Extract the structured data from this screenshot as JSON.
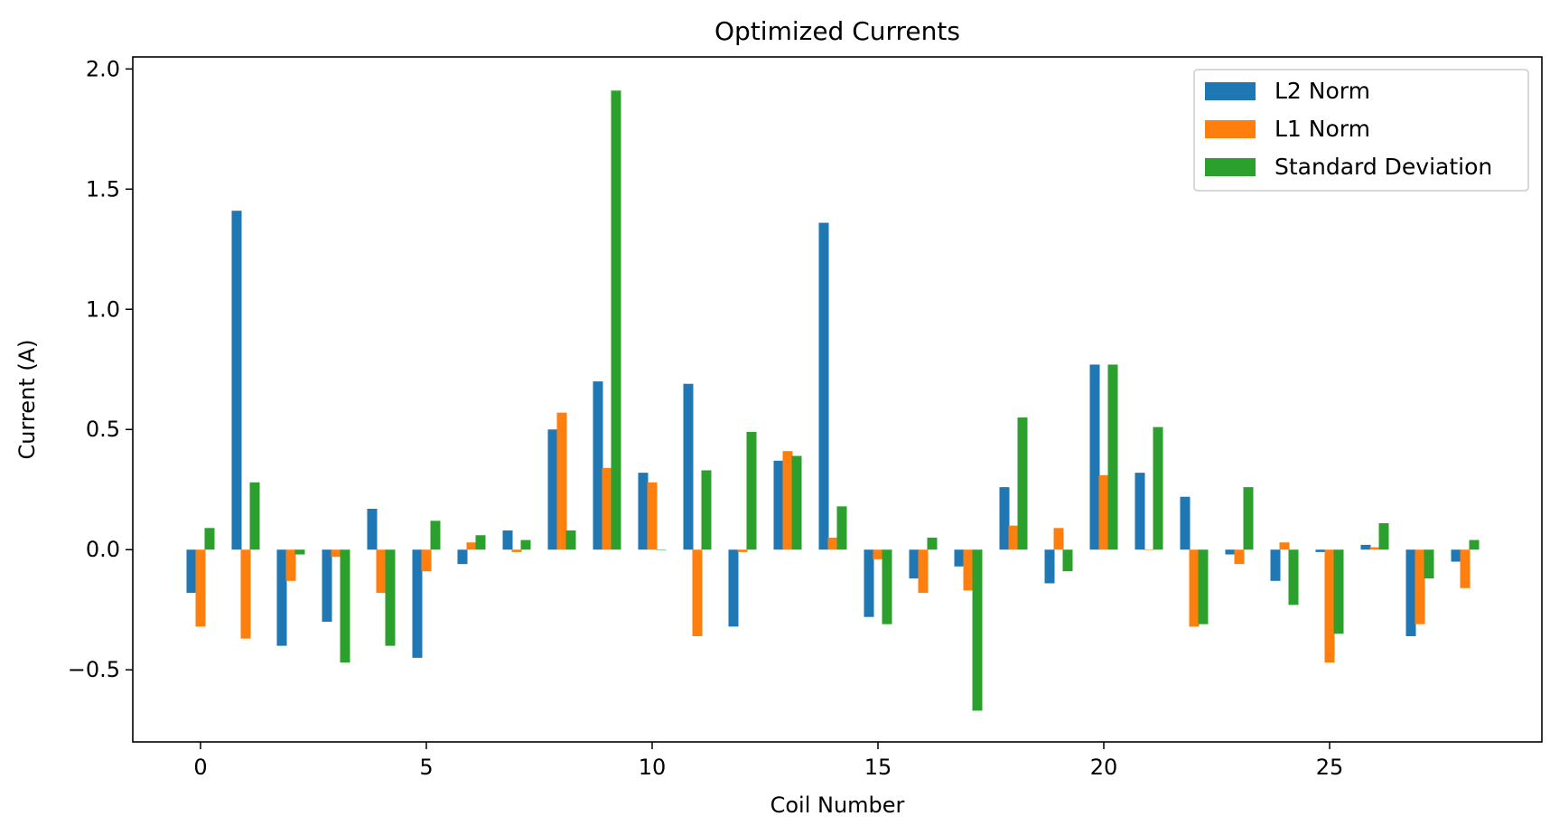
{
  "chart_data": {
    "type": "bar",
    "title": "Optimized Currents",
    "xlabel": "Coil Number",
    "ylabel": "Current (A)",
    "xlim": [
      -1.5,
      29.7
    ],
    "ylim": [
      -0.8,
      2.05
    ],
    "xticks": [
      0,
      5,
      10,
      15,
      20,
      25
    ],
    "yticks": [
      -0.5,
      0.0,
      0.5,
      1.0,
      1.5,
      2.0
    ],
    "ytick_labels": [
      "−0.5",
      "0.0",
      "0.5",
      "1.0",
      "1.5",
      "2.0"
    ],
    "xtick_labels": [
      "0",
      "5",
      "10",
      "15",
      "20",
      "25"
    ],
    "grid": false,
    "legend_position": "top-right",
    "categories": [
      0,
      1,
      2,
      3,
      4,
      5,
      6,
      7,
      8,
      9,
      10,
      11,
      12,
      13,
      14,
      15,
      16,
      17,
      18,
      19,
      20,
      21,
      22,
      23,
      24,
      25,
      26,
      27,
      28
    ],
    "series": [
      {
        "name": "L2 Norm",
        "color": "#1f77b4",
        "values": [
          -0.18,
          1.41,
          -0.4,
          -0.3,
          0.17,
          -0.45,
          -0.06,
          0.08,
          0.5,
          0.7,
          0.32,
          0.69,
          -0.32,
          0.37,
          1.36,
          -0.28,
          -0.12,
          -0.07,
          0.26,
          -0.14,
          0.77,
          0.32,
          0.22,
          -0.02,
          -0.13,
          -0.01,
          0.02,
          -0.36,
          -0.05
        ]
      },
      {
        "name": "L1 Norm",
        "color": "#ff7f0e",
        "values": [
          -0.32,
          -0.37,
          -0.13,
          -0.03,
          -0.18,
          -0.09,
          0.03,
          -0.01,
          0.57,
          0.34,
          0.28,
          -0.36,
          -0.01,
          0.41,
          0.05,
          -0.04,
          -0.18,
          -0.17,
          0.1,
          0.09,
          0.31,
          0.0,
          -0.32,
          -0.06,
          0.03,
          -0.47,
          0.01,
          -0.31,
          -0.16
        ]
      },
      {
        "name": "Standard Deviation",
        "color": "#2ca02c",
        "values": [
          0.09,
          0.28,
          -0.02,
          -0.47,
          -0.4,
          0.12,
          0.06,
          0.04,
          0.08,
          1.91,
          0.0,
          0.33,
          0.49,
          0.39,
          0.18,
          -0.31,
          0.05,
          -0.67,
          0.55,
          -0.09,
          0.77,
          0.51,
          -0.31,
          0.26,
          -0.23,
          -0.35,
          0.11,
          -0.12,
          0.04
        ]
      }
    ]
  }
}
